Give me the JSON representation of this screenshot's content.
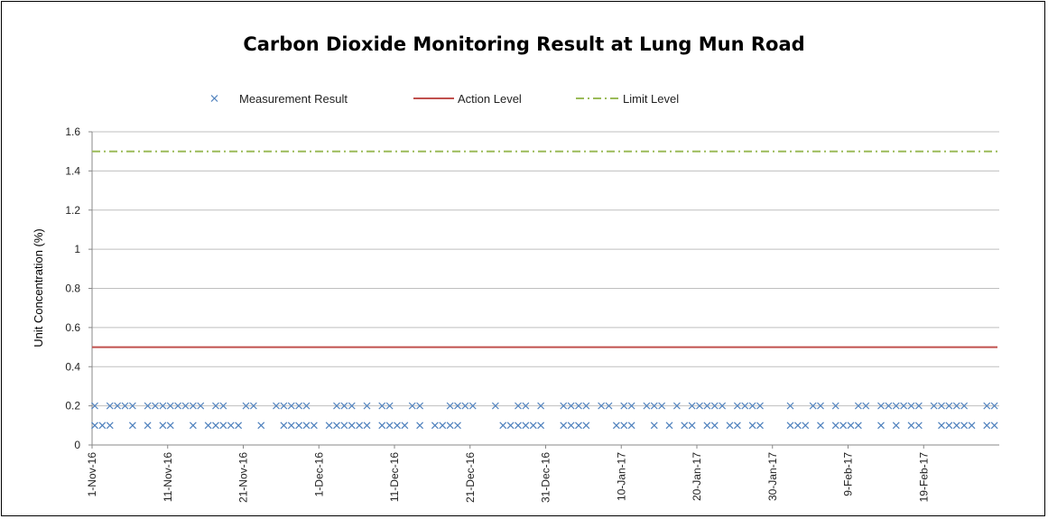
{
  "chart_data": {
    "type": "line",
    "title": "Carbon Dioxide Monitoring Result at Lung Mun Road",
    "xlabel": "",
    "ylabel": "Unit Concentration (%)",
    "ylim": [
      0,
      1.6
    ],
    "yticks": [
      "0",
      "0.2",
      "0.4",
      "0.6",
      "0.8",
      "1",
      "1.2",
      "1.4",
      "1.6"
    ],
    "xlim": [
      "2016-11-01",
      "2017-02-28"
    ],
    "xticks": [
      {
        "label": "1-Nov-16",
        "date": "2016-11-01"
      },
      {
        "label": "11-Nov-16",
        "date": "2016-11-11"
      },
      {
        "label": "21-Nov-16",
        "date": "2016-11-21"
      },
      {
        "label": "1-Dec-16",
        "date": "2016-12-01"
      },
      {
        "label": "11-Dec-16",
        "date": "2016-12-11"
      },
      {
        "label": "21-Dec-16",
        "date": "2016-12-21"
      },
      {
        "label": "31-Dec-16",
        "date": "2016-12-31"
      },
      {
        "label": "10-Jan-17",
        "date": "2017-01-10"
      },
      {
        "label": "20-Jan-17",
        "date": "2017-01-20"
      },
      {
        "label": "30-Jan-17",
        "date": "2017-01-30"
      },
      {
        "label": "9-Feb-17",
        "date": "2017-02-09"
      },
      {
        "label": "19-Feb-17",
        "date": "2017-02-19"
      }
    ],
    "grid": true,
    "legend_position": "top",
    "series": [
      {
        "name": "Measurement Result",
        "style": "markers-x",
        "color": "#4F81BD",
        "points": [
          {
            "x": "2016-11-01",
            "y": 0.2
          },
          {
            "x": "2016-11-01",
            "y": 0.1
          },
          {
            "x": "2016-11-02",
            "y": 0.1
          },
          {
            "x": "2016-11-03",
            "y": 0.2
          },
          {
            "x": "2016-11-03",
            "y": 0.1
          },
          {
            "x": "2016-11-04",
            "y": 0.2
          },
          {
            "x": "2016-11-05",
            "y": 0.2
          },
          {
            "x": "2016-11-06",
            "y": 0.2
          },
          {
            "x": "2016-11-06",
            "y": 0.1
          },
          {
            "x": "2016-11-08",
            "y": 0.2
          },
          {
            "x": "2016-11-08",
            "y": 0.1
          },
          {
            "x": "2016-11-09",
            "y": 0.2
          },
          {
            "x": "2016-11-10",
            "y": 0.2
          },
          {
            "x": "2016-11-10",
            "y": 0.1
          },
          {
            "x": "2016-11-11",
            "y": 0.2
          },
          {
            "x": "2016-11-11",
            "y": 0.1
          },
          {
            "x": "2016-11-12",
            "y": 0.2
          },
          {
            "x": "2016-11-13",
            "y": 0.2
          },
          {
            "x": "2016-11-14",
            "y": 0.2
          },
          {
            "x": "2016-11-14",
            "y": 0.1
          },
          {
            "x": "2016-11-15",
            "y": 0.2
          },
          {
            "x": "2016-11-16",
            "y": 0.1
          },
          {
            "x": "2016-11-17",
            "y": 0.2
          },
          {
            "x": "2016-11-17",
            "y": 0.1
          },
          {
            "x": "2016-11-18",
            "y": 0.2
          },
          {
            "x": "2016-11-18",
            "y": 0.1
          },
          {
            "x": "2016-11-19",
            "y": 0.1
          },
          {
            "x": "2016-11-20",
            "y": 0.1
          },
          {
            "x": "2016-11-21",
            "y": 0.2
          },
          {
            "x": "2016-11-22",
            "y": 0.2
          },
          {
            "x": "2016-11-23",
            "y": 0.1
          },
          {
            "x": "2016-11-25",
            "y": 0.2
          },
          {
            "x": "2016-11-26",
            "y": 0.2
          },
          {
            "x": "2016-11-26",
            "y": 0.1
          },
          {
            "x": "2016-11-27",
            "y": 0.2
          },
          {
            "x": "2016-11-27",
            "y": 0.1
          },
          {
            "x": "2016-11-28",
            "y": 0.2
          },
          {
            "x": "2016-11-28",
            "y": 0.1
          },
          {
            "x": "2016-11-29",
            "y": 0.2
          },
          {
            "x": "2016-11-29",
            "y": 0.1
          },
          {
            "x": "2016-11-30",
            "y": 0.1
          },
          {
            "x": "2016-12-02",
            "y": 0.1
          },
          {
            "x": "2016-12-03",
            "y": 0.2
          },
          {
            "x": "2016-12-03",
            "y": 0.1
          },
          {
            "x": "2016-12-04",
            "y": 0.2
          },
          {
            "x": "2016-12-04",
            "y": 0.1
          },
          {
            "x": "2016-12-05",
            "y": 0.2
          },
          {
            "x": "2016-12-05",
            "y": 0.1
          },
          {
            "x": "2016-12-06",
            "y": 0.1
          },
          {
            "x": "2016-12-07",
            "y": 0.2
          },
          {
            "x": "2016-12-07",
            "y": 0.1
          },
          {
            "x": "2016-12-09",
            "y": 0.2
          },
          {
            "x": "2016-12-09",
            "y": 0.1
          },
          {
            "x": "2016-12-10",
            "y": 0.2
          },
          {
            "x": "2016-12-10",
            "y": 0.1
          },
          {
            "x": "2016-12-11",
            "y": 0.1
          },
          {
            "x": "2016-12-12",
            "y": 0.1
          },
          {
            "x": "2016-12-13",
            "y": 0.2
          },
          {
            "x": "2016-12-14",
            "y": 0.2
          },
          {
            "x": "2016-12-14",
            "y": 0.1
          },
          {
            "x": "2016-12-16",
            "y": 0.1
          },
          {
            "x": "2016-12-17",
            "y": 0.1
          },
          {
            "x": "2016-12-18",
            "y": 0.2
          },
          {
            "x": "2016-12-18",
            "y": 0.1
          },
          {
            "x": "2016-12-19",
            "y": 0.2
          },
          {
            "x": "2016-12-19",
            "y": 0.1
          },
          {
            "x": "2016-12-20",
            "y": 0.2
          },
          {
            "x": "2016-12-21",
            "y": 0.2
          },
          {
            "x": "2016-12-24",
            "y": 0.2
          },
          {
            "x": "2016-12-25",
            "y": 0.1
          },
          {
            "x": "2016-12-26",
            "y": 0.1
          },
          {
            "x": "2016-12-27",
            "y": 0.2
          },
          {
            "x": "2016-12-27",
            "y": 0.1
          },
          {
            "x": "2016-12-28",
            "y": 0.2
          },
          {
            "x": "2016-12-28",
            "y": 0.1
          },
          {
            "x": "2016-12-29",
            "y": 0.1
          },
          {
            "x": "2016-12-30",
            "y": 0.2
          },
          {
            "x": "2016-12-30",
            "y": 0.1
          },
          {
            "x": "2017-01-02",
            "y": 0.2
          },
          {
            "x": "2017-01-02",
            "y": 0.1
          },
          {
            "x": "2017-01-03",
            "y": 0.2
          },
          {
            "x": "2017-01-03",
            "y": 0.1
          },
          {
            "x": "2017-01-04",
            "y": 0.2
          },
          {
            "x": "2017-01-04",
            "y": 0.1
          },
          {
            "x": "2017-01-05",
            "y": 0.2
          },
          {
            "x": "2017-01-05",
            "y": 0.1
          },
          {
            "x": "2017-01-07",
            "y": 0.2
          },
          {
            "x": "2017-01-08",
            "y": 0.2
          },
          {
            "x": "2017-01-09",
            "y": 0.1
          },
          {
            "x": "2017-01-10",
            "y": 0.2
          },
          {
            "x": "2017-01-10",
            "y": 0.1
          },
          {
            "x": "2017-01-11",
            "y": 0.2
          },
          {
            "x": "2017-01-11",
            "y": 0.1
          },
          {
            "x": "2017-01-13",
            "y": 0.2
          },
          {
            "x": "2017-01-14",
            "y": 0.2
          },
          {
            "x": "2017-01-14",
            "y": 0.1
          },
          {
            "x": "2017-01-15",
            "y": 0.2
          },
          {
            "x": "2017-01-16",
            "y": 0.1
          },
          {
            "x": "2017-01-17",
            "y": 0.2
          },
          {
            "x": "2017-01-18",
            "y": 0.1
          },
          {
            "x": "2017-01-19",
            "y": 0.2
          },
          {
            "x": "2017-01-19",
            "y": 0.1
          },
          {
            "x": "2017-01-20",
            "y": 0.2
          },
          {
            "x": "2017-01-21",
            "y": 0.2
          },
          {
            "x": "2017-01-21",
            "y": 0.1
          },
          {
            "x": "2017-01-22",
            "y": 0.2
          },
          {
            "x": "2017-01-22",
            "y": 0.1
          },
          {
            "x": "2017-01-23",
            "y": 0.2
          },
          {
            "x": "2017-01-24",
            "y": 0.1
          },
          {
            "x": "2017-01-25",
            "y": 0.2
          },
          {
            "x": "2017-01-25",
            "y": 0.1
          },
          {
            "x": "2017-01-26",
            "y": 0.2
          },
          {
            "x": "2017-01-27",
            "y": 0.2
          },
          {
            "x": "2017-01-27",
            "y": 0.1
          },
          {
            "x": "2017-01-28",
            "y": 0.2
          },
          {
            "x": "2017-01-28",
            "y": 0.1
          },
          {
            "x": "2017-02-01",
            "y": 0.2
          },
          {
            "x": "2017-02-01",
            "y": 0.1
          },
          {
            "x": "2017-02-02",
            "y": 0.1
          },
          {
            "x": "2017-02-03",
            "y": 0.1
          },
          {
            "x": "2017-02-04",
            "y": 0.2
          },
          {
            "x": "2017-02-05",
            "y": 0.2
          },
          {
            "x": "2017-02-05",
            "y": 0.1
          },
          {
            "x": "2017-02-07",
            "y": 0.2
          },
          {
            "x": "2017-02-07",
            "y": 0.1
          },
          {
            "x": "2017-02-08",
            "y": 0.1
          },
          {
            "x": "2017-02-09",
            "y": 0.1
          },
          {
            "x": "2017-02-10",
            "y": 0.2
          },
          {
            "x": "2017-02-10",
            "y": 0.1
          },
          {
            "x": "2017-02-11",
            "y": 0.2
          },
          {
            "x": "2017-02-13",
            "y": 0.2
          },
          {
            "x": "2017-02-13",
            "y": 0.1
          },
          {
            "x": "2017-02-14",
            "y": 0.2
          },
          {
            "x": "2017-02-15",
            "y": 0.2
          },
          {
            "x": "2017-02-15",
            "y": 0.1
          },
          {
            "x": "2017-02-16",
            "y": 0.2
          },
          {
            "x": "2017-02-17",
            "y": 0.2
          },
          {
            "x": "2017-02-17",
            "y": 0.1
          },
          {
            "x": "2017-02-18",
            "y": 0.2
          },
          {
            "x": "2017-02-18",
            "y": 0.1
          },
          {
            "x": "2017-02-20",
            "y": 0.2
          },
          {
            "x": "2017-02-21",
            "y": 0.2
          },
          {
            "x": "2017-02-21",
            "y": 0.1
          },
          {
            "x": "2017-02-22",
            "y": 0.2
          },
          {
            "x": "2017-02-22",
            "y": 0.1
          },
          {
            "x": "2017-02-23",
            "y": 0.2
          },
          {
            "x": "2017-02-23",
            "y": 0.1
          },
          {
            "x": "2017-02-24",
            "y": 0.2
          },
          {
            "x": "2017-02-24",
            "y": 0.1
          },
          {
            "x": "2017-02-25",
            "y": 0.1
          },
          {
            "x": "2017-02-27",
            "y": 0.2
          },
          {
            "x": "2017-02-27",
            "y": 0.1
          },
          {
            "x": "2017-02-28",
            "y": 0.2
          },
          {
            "x": "2017-02-28",
            "y": 0.1
          }
        ]
      },
      {
        "name": "Action Level",
        "style": "solid-line",
        "color": "#C0504D",
        "points": [
          {
            "x": "2016-11-01",
            "y": 0.5
          },
          {
            "x": "2017-02-28",
            "y": 0.5
          }
        ]
      },
      {
        "name": "Limit Level",
        "style": "dash-dot-line",
        "color": "#9BBB59",
        "points": [
          {
            "x": "2016-11-01",
            "y": 1.5
          },
          {
            "x": "2017-02-28",
            "y": 1.5
          }
        ]
      }
    ]
  }
}
